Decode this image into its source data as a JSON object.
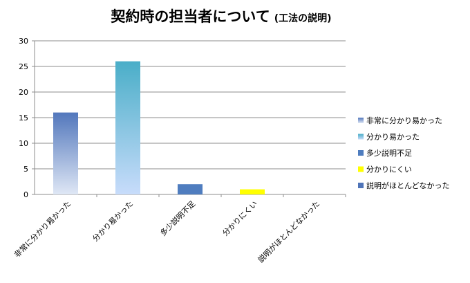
{
  "chart_data": {
    "type": "bar",
    "title": "契約時の担当者について",
    "subtitle": "(工法の説明)",
    "categories": [
      "非常に分かり易かった",
      "分かり易かった",
      "多少説明不足",
      "分かりにくい",
      "説明がほとんどなかった"
    ],
    "values": [
      16,
      26,
      2,
      1,
      0
    ],
    "ylim": [
      0,
      30
    ],
    "yticks": [
      0,
      5,
      10,
      15,
      20,
      25,
      30
    ],
    "grid": true,
    "legend_position": "right",
    "colors": [
      "#5b83c4",
      "#4fb3cf",
      "#4f7dbf",
      "#ffff00",
      "#4f74b8"
    ],
    "gradient_tops": [
      "#5277bc",
      "#4aaec8",
      "#4f7dbf",
      "#ffff00",
      "#4f74b8"
    ],
    "gradient_bottoms": [
      "#dfe7f5",
      "#c8dcfb",
      "#4f7dbf",
      "#ffff00",
      "#4f74b8"
    ]
  }
}
